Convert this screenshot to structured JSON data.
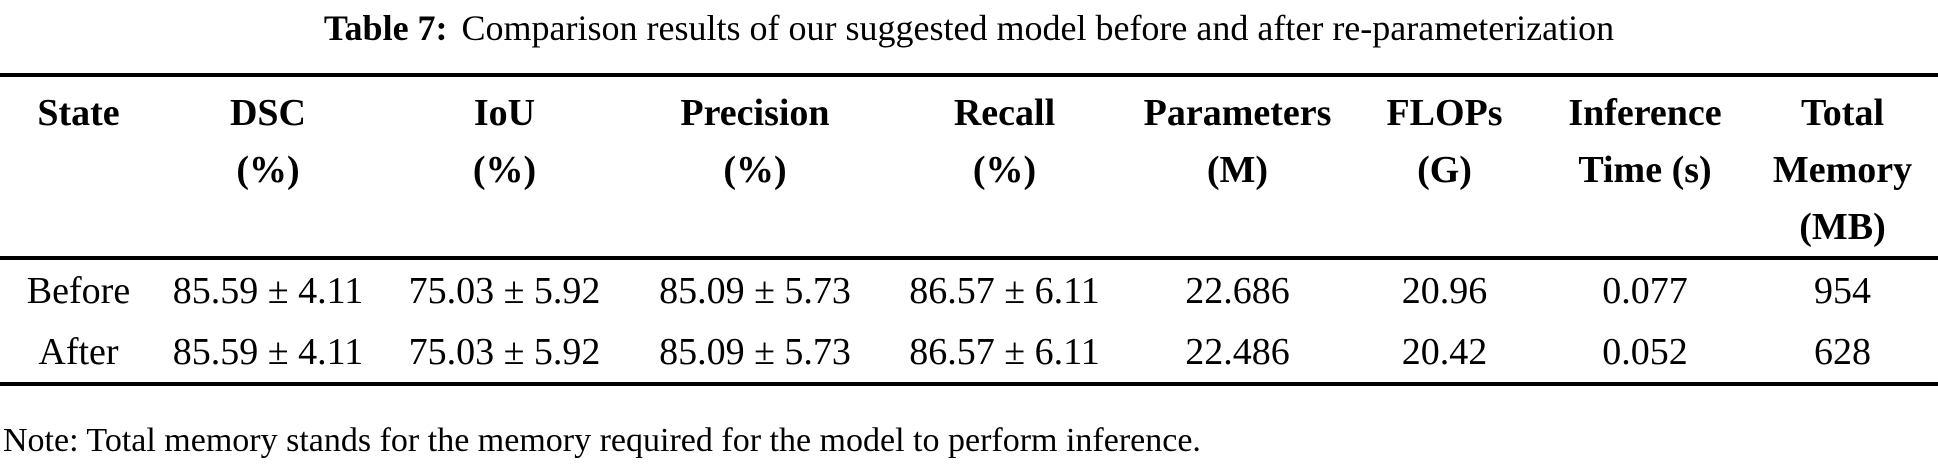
{
  "caption": {
    "label": "Table 7:",
    "text": "Comparison results of our suggested model before and after re-parameterization"
  },
  "table": {
    "columns": [
      {
        "header": "State"
      },
      {
        "header": "DSC\n(%)"
      },
      {
        "header": "IoU\n(%)"
      },
      {
        "header": "Precision\n(%)"
      },
      {
        "header": "Recall\n(%)"
      },
      {
        "header": "Parameters\n(M)"
      },
      {
        "header": "FLOPs\n(G)"
      },
      {
        "header": "Inference\nTime (s)"
      },
      {
        "header": "Total\nMemory\n(MB)"
      }
    ],
    "rows": [
      {
        "cells": [
          "Before",
          "85.59 ± 4.11",
          "75.03 ± 5.92",
          "85.09 ± 5.73",
          "86.57 ± 6.11",
          "22.686",
          "20.96",
          "0.077",
          "954"
        ]
      },
      {
        "cells": [
          "After",
          "85.59 ± 4.11",
          "75.03 ± 5.92",
          "85.09 ± 5.73",
          "86.57 ± 6.11",
          "22.486",
          "20.42",
          "0.052",
          "628"
        ]
      }
    ]
  },
  "note": {
    "text": "Note: Total memory stands for the memory required for the model to perform inference."
  },
  "colors": {
    "text": "#000000",
    "background": "#ffffff",
    "rule": "#000000"
  }
}
